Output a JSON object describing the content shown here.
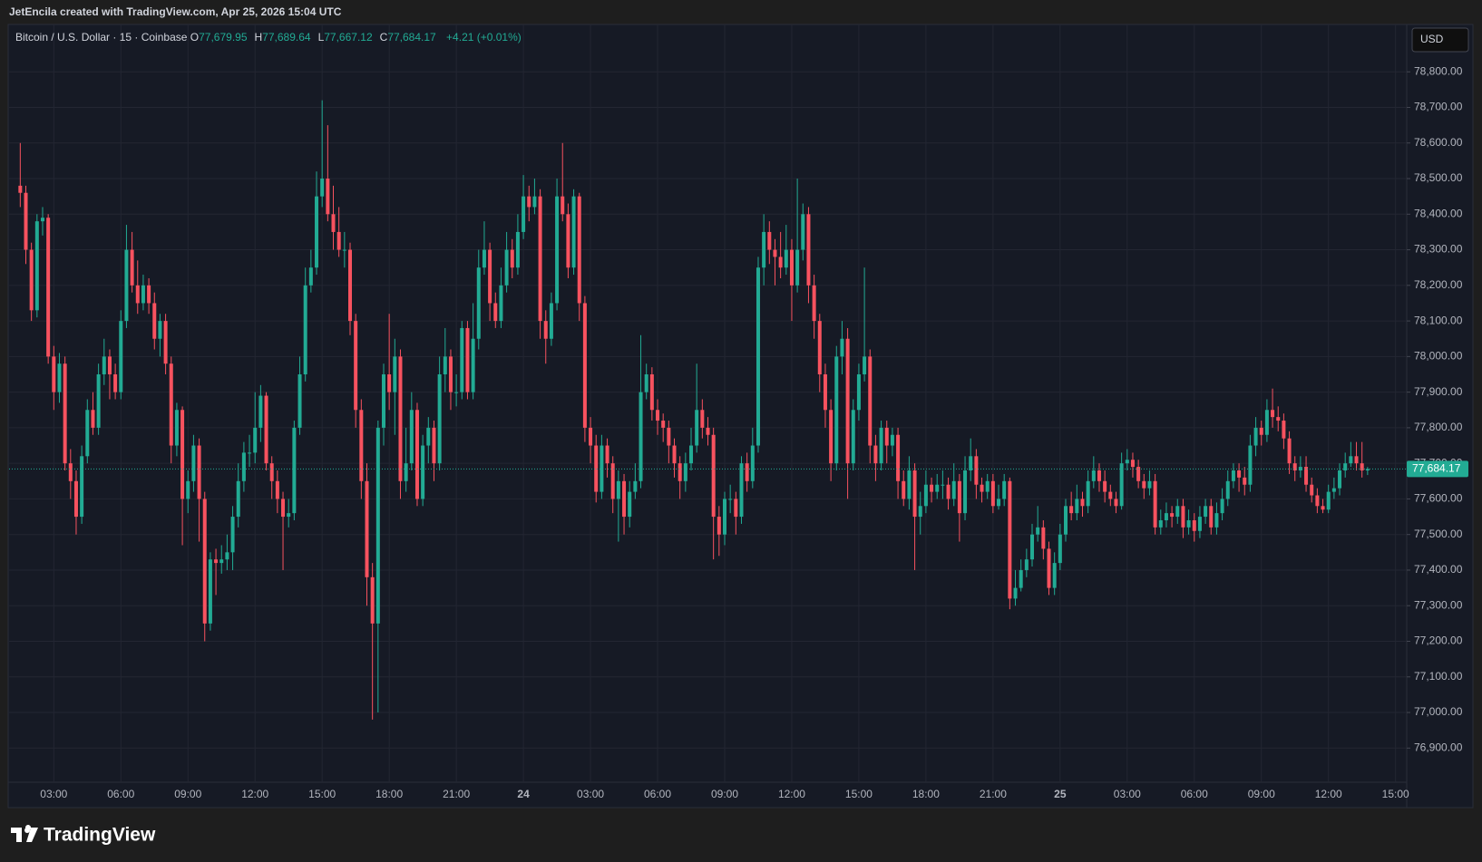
{
  "header": {
    "credit": "JetEncila created with TradingView.com, Apr 25, 2026 15:04 UTC"
  },
  "chart_data": {
    "type": "candlestick",
    "title": "Bitcoin / U.S. Dollar · 15 · Coinbase",
    "legend_values": [
      {
        "name": "O",
        "label": "77,679.95"
      },
      {
        "name": "H",
        "label": "77,689.64"
      },
      {
        "name": "L",
        "label": "77,667.12"
      },
      {
        "name": "C",
        "label": "77,684.17"
      }
    ],
    "change": "+4.21 (+0.01%)",
    "currency": "USD",
    "last_price_label": "77,684.17",
    "up_color": "#22ab94",
    "down_color": "#f7525f",
    "grid": true,
    "open": [
      78480,
      78460,
      78300,
      78130,
      78380,
      78390,
      78000,
      77900,
      77980,
      77700,
      77650,
      77550,
      77720,
      77850,
      77800,
      77950,
      78000,
      77950,
      77900,
      78100,
      78300,
      78200,
      78150,
      78200,
      78150,
      78050,
      78100,
      77980,
      77750,
      77850,
      77600,
      77650,
      77750,
      77600,
      77250,
      77430,
      77420,
      77430,
      77450,
      77550,
      77650,
      77730,
      77730,
      77800,
      77890,
      77700,
      77650,
      77600,
      77550,
      77560,
      77800,
      77950,
      78200,
      78250,
      78450,
      78500,
      78400,
      78350,
      78300,
      78300,
      78100,
      77850,
      77650,
      77380,
      77250,
      77800,
      77950,
      77900,
      78000,
      77650,
      77700,
      77850,
      77600,
      77750,
      77800,
      77700,
      77950,
      78000,
      77900,
      77900,
      78080,
      77900,
      78050,
      78250,
      78300,
      78150,
      78100,
      78200,
      78300,
      78250,
      78350,
      78450,
      78420,
      78450,
      78100,
      78050,
      78150,
      78450,
      78400,
      78250,
      78450,
      78150,
      77800,
      77750,
      77620,
      77750,
      77700,
      77600,
      77650,
      77550,
      77620,
      77650,
      77900,
      77950,
      77850,
      77820,
      77800,
      77750,
      77700,
      77650,
      77700,
      77750,
      77850,
      77800,
      77780,
      77550,
      77500,
      77600,
      77600,
      77550,
      77700,
      77650,
      77750,
      78250,
      78350,
      78300,
      78280,
      78250,
      78300,
      78200,
      78300,
      78400,
      78200,
      78100,
      77950,
      77850,
      77700,
      78000,
      78050,
      77700,
      77850,
      77950,
      78000,
      77750,
      77700,
      77800,
      77750,
      77780,
      77650,
      77600,
      77680,
      77550,
      77580,
      77640,
      77620,
      77640,
      77640,
      77600,
      77650,
      77560,
      77680,
      77720,
      77640,
      77620,
      77650,
      77580,
      77600,
      77650,
      77320,
      77350,
      77400,
      77430,
      77500,
      77520,
      77460,
      77350,
      77420,
      77500,
      77580,
      77560,
      77600,
      77580,
      77650,
      77680,
      77650,
      77620,
      77600,
      77580,
      77700,
      77710,
      77690,
      77650,
      77630,
      77650,
      77520,
      77540,
      77560,
      77550,
      77580,
      77520,
      77540,
      77510,
      77550,
      77580,
      77520,
      77560,
      77600,
      77650,
      77680,
      77660,
      77640,
      77750,
      77800,
      77780,
      77850,
      77830,
      77820,
      77770,
      77700,
      77680,
      77690,
      77640,
      77610,
      77580,
      77570,
      77620,
      77630,
      77680,
      77700,
      77720,
      77700,
      77679.95
    ],
    "high": [
      78600,
      78480,
      78320,
      78400,
      78420,
      78400,
      78030,
      78010,
      78000,
      77740,
      77680,
      77750,
      77880,
      77900,
      77980,
      78050,
      78020,
      77980,
      78130,
      78370,
      78350,
      78270,
      78230,
      78220,
      78180,
      78120,
      78120,
      78000,
      77870,
      77860,
      77680,
      77780,
      77770,
      77620,
      77450,
      77460,
      77470,
      77500,
      77580,
      77700,
      77760,
      77780,
      77900,
      77920,
      77900,
      77720,
      77680,
      77620,
      77600,
      77820,
      78000,
      78250,
      78300,
      78520,
      78720,
      78650,
      78480,
      78420,
      78350,
      78320,
      78120,
      77880,
      77700,
      77420,
      77820,
      77980,
      78120,
      78050,
      78020,
      77800,
      77900,
      77870,
      77780,
      77830,
      77820,
      78000,
      78080,
      78020,
      77950,
      78100,
      78100,
      78150,
      78300,
      78380,
      78320,
      78180,
      78250,
      78350,
      78330,
      78400,
      78510,
      78480,
      78500,
      78470,
      78130,
      78180,
      78500,
      78600,
      78430,
      78470,
      78460,
      78170,
      77830,
      77780,
      77780,
      77770,
      77720,
      77680,
      77670,
      77650,
      77700,
      78060,
      77980,
      77970,
      77880,
      77840,
      77820,
      77770,
      77720,
      77730,
      77800,
      77980,
      77880,
      77830,
      77800,
      77580,
      77620,
      77640,
      77620,
      77720,
      77730,
      77800,
      78280,
      78400,
      78380,
      78330,
      78350,
      78370,
      78330,
      78500,
      78430,
      78420,
      78230,
      78120,
      77980,
      77880,
      78030,
      78100,
      78080,
      77880,
      77980,
      78250,
      78020,
      77780,
      77820,
      77820,
      77800,
      77800,
      77680,
      77720,
      77700,
      77620,
      77680,
      77660,
      77670,
      77680,
      77660,
      77700,
      77670,
      77720,
      77770,
      77740,
      77660,
      77670,
      77670,
      77640,
      77670,
      77660,
      77400,
      77430,
      77460,
      77530,
      77580,
      77540,
      77480,
      77450,
      77530,
      77600,
      77620,
      77640,
      77620,
      77680,
      77720,
      77700,
      77680,
      77640,
      77620,
      77730,
      77740,
      77730,
      77710,
      77670,
      77680,
      77670,
      77570,
      77590,
      77580,
      77600,
      77600,
      77570,
      77560,
      77580,
      77600,
      77600,
      77590,
      77630,
      77680,
      77700,
      77700,
      77690,
      77780,
      77830,
      77820,
      77880,
      77910,
      77860,
      77840,
      77790,
      77720,
      77720,
      77720,
      77660,
      77630,
      77600,
      77640,
      77660,
      77700,
      77730,
      77760,
      77760,
      77760,
      77689.64
    ],
    "low": [
      78420,
      78260,
      78100,
      78110,
      78340,
      77980,
      77850,
      77870,
      77680,
      77600,
      77500,
      77530,
      77700,
      77780,
      77780,
      77920,
      77880,
      77880,
      77880,
      78080,
      78180,
      78120,
      78130,
      78120,
      78020,
      78000,
      77950,
      77700,
      77720,
      77470,
      77560,
      77620,
      77480,
      77200,
      77230,
      77330,
      77390,
      77400,
      77400,
      77520,
      77620,
      77690,
      77700,
      77760,
      77680,
      77600,
      77560,
      77400,
      77520,
      77540,
      77780,
      77930,
      78180,
      78230,
      78420,
      78380,
      78300,
      78280,
      78250,
      78060,
      77800,
      77600,
      77300,
      76980,
      77000,
      77750,
      77850,
      77780,
      77600,
      77620,
      77680,
      77580,
      77580,
      77700,
      77650,
      77680,
      77900,
      77850,
      77860,
      77880,
      77880,
      77880,
      78020,
      78230,
      78100,
      78080,
      78080,
      78180,
      78220,
      78230,
      78330,
      78380,
      78400,
      78050,
      77980,
      78030,
      78130,
      78380,
      78220,
      78230,
      78100,
      77760,
      77700,
      77590,
      77600,
      77660,
      77560,
      77480,
      77500,
      77520,
      77600,
      77630,
      77880,
      77820,
      77780,
      77760,
      77700,
      77660,
      77600,
      77620,
      77680,
      77730,
      77770,
      77750,
      77430,
      77440,
      77470,
      77560,
      77500,
      77530,
      77620,
      77630,
      77730,
      78200,
      78260,
      78200,
      78220,
      78230,
      78100,
      78180,
      78270,
      78150,
      78050,
      77900,
      77800,
      77650,
      77680,
      77950,
      77600,
      77680,
      77820,
      77930,
      77700,
      77650,
      77680,
      77700,
      77720,
      77600,
      77580,
      77570,
      77400,
      77500,
      77560,
      77590,
      77600,
      77600,
      77570,
      77580,
      77480,
      77540,
      77650,
      77600,
      77590,
      77600,
      77560,
      77570,
      77580,
      77290,
      77300,
      77340,
      77380,
      77410,
      77480,
      77430,
      77330,
      77330,
      77400,
      77480,
      77540,
      77540,
      77550,
      77560,
      77630,
      77620,
      77590,
      77580,
      77560,
      77570,
      77680,
      77660,
      77630,
      77600,
      77610,
      77500,
      77500,
      77520,
      77520,
      77530,
      77490,
      77500,
      77480,
      77490,
      77530,
      77500,
      77500,
      77540,
      77580,
      77630,
      77620,
      77610,
      77620,
      77720,
      77750,
      77760,
      77800,
      77790,
      77740,
      77670,
      77650,
      77660,
      77620,
      77590,
      77560,
      77560,
      77560,
      77600,
      77610,
      77660,
      77690,
      77680,
      77660,
      77667.12
    ],
    "close": [
      78460,
      78300,
      78130,
      78380,
      78390,
      78000,
      77900,
      77980,
      77700,
      77650,
      77550,
      77720,
      77850,
      77800,
      77950,
      78000,
      77950,
      77900,
      78100,
      78300,
      78200,
      78150,
      78200,
      78150,
      78050,
      78100,
      77980,
      77750,
      77850,
      77600,
      77650,
      77750,
      77600,
      77250,
      77430,
      77420,
      77430,
      77450,
      77550,
      77650,
      77730,
      77730,
      77800,
      77890,
      77700,
      77650,
      77600,
      77550,
      77560,
      77800,
      77950,
      78200,
      78250,
      78450,
      78500,
      78400,
      78350,
      78300,
      78300,
      78100,
      77850,
      77650,
      77380,
      77250,
      77800,
      77950,
      77900,
      78000,
      77650,
      77700,
      77850,
      77600,
      77750,
      77800,
      77700,
      77950,
      78000,
      77900,
      77900,
      78080,
      77900,
      78050,
      78250,
      78300,
      78150,
      78100,
      78200,
      78300,
      78250,
      78350,
      78450,
      78420,
      78450,
      78100,
      78050,
      78150,
      78450,
      78400,
      78250,
      78450,
      78150,
      77800,
      77750,
      77620,
      77750,
      77700,
      77600,
      77650,
      77550,
      77620,
      77650,
      77900,
      77950,
      77850,
      77820,
      77800,
      77750,
      77700,
      77650,
      77700,
      77750,
      77850,
      77800,
      77780,
      77550,
      77500,
      77600,
      77600,
      77550,
      77700,
      77650,
      77750,
      78250,
      78350,
      78300,
      78280,
      78250,
      78300,
      78200,
      78300,
      78400,
      78200,
      78100,
      77950,
      77850,
      77700,
      78000,
      78050,
      77700,
      77850,
      77950,
      78000,
      77750,
      77700,
      77800,
      77750,
      77780,
      77650,
      77600,
      77680,
      77550,
      77580,
      77640,
      77620,
      77640,
      77640,
      77600,
      77650,
      77560,
      77680,
      77720,
      77640,
      77620,
      77650,
      77580,
      77600,
      77650,
      77320,
      77350,
      77400,
      77430,
      77500,
      77520,
      77460,
      77350,
      77420,
      77500,
      77580,
      77560,
      77600,
      77580,
      77650,
      77680,
      77650,
      77620,
      77600,
      77580,
      77700,
      77710,
      77690,
      77650,
      77630,
      77650,
      77520,
      77540,
      77560,
      77550,
      77580,
      77520,
      77540,
      77510,
      77550,
      77580,
      77520,
      77560,
      77600,
      77650,
      77680,
      77660,
      77640,
      77750,
      77800,
      77780,
      77850,
      77830,
      77820,
      77770,
      77700,
      77680,
      77690,
      77640,
      77610,
      77580,
      77570,
      77620,
      77630,
      77680,
      77700,
      77720,
      77700,
      77679.95,
      77684.17
    ],
    "xlim": [
      -2,
      248
    ],
    "xticks": [
      {
        "value": 6,
        "label": "03:00"
      },
      {
        "value": 18,
        "label": "06:00"
      },
      {
        "value": 30,
        "label": "09:00"
      },
      {
        "value": 42,
        "label": "12:00"
      },
      {
        "value": 54,
        "label": "15:00"
      },
      {
        "value": 66,
        "label": "18:00"
      },
      {
        "value": 78,
        "label": "21:00"
      },
      {
        "value": 90,
        "label": "24"
      },
      {
        "value": 102,
        "label": "03:00"
      },
      {
        "value": 114,
        "label": "06:00"
      },
      {
        "value": 126,
        "label": "09:00"
      },
      {
        "value": 138,
        "label": "12:00"
      },
      {
        "value": 150,
        "label": "15:00"
      },
      {
        "value": 162,
        "label": "18:00"
      },
      {
        "value": 174,
        "label": "21:00"
      },
      {
        "value": 186,
        "label": "25"
      },
      {
        "value": 198,
        "label": "03:00"
      },
      {
        "value": 210,
        "label": "06:00"
      },
      {
        "value": 222,
        "label": "09:00"
      },
      {
        "value": 234,
        "label": "12:00"
      },
      {
        "value": 246,
        "label": "15:00"
      }
    ],
    "ylim": [
      76804,
      78933
    ],
    "yticks": [
      {
        "value": 76900,
        "label": "76,900.00"
      },
      {
        "value": 77000,
        "label": "77,000.00"
      },
      {
        "value": 77100,
        "label": "77,100.00"
      },
      {
        "value": 77200,
        "label": "77,200.00"
      },
      {
        "value": 77300,
        "label": "77,300.00"
      },
      {
        "value": 77400,
        "label": "77,400.00"
      },
      {
        "value": 77500,
        "label": "77,500.00"
      },
      {
        "value": 77600,
        "label": "77,600.00"
      },
      {
        "value": 77700,
        "label": "77,700.00"
      },
      {
        "value": 77800,
        "label": "77,800.00"
      },
      {
        "value": 77900,
        "label": "77,900.00"
      },
      {
        "value": 78000,
        "label": "78,000.00"
      },
      {
        "value": 78100,
        "label": "78,100.00"
      },
      {
        "value": 78200,
        "label": "78,200.00"
      },
      {
        "value": 78300,
        "label": "78,300.00"
      },
      {
        "value": 78400,
        "label": "78,400.00"
      },
      {
        "value": 78500,
        "label": "78,500.00"
      },
      {
        "value": 78600,
        "label": "78,600.00"
      },
      {
        "value": 78700,
        "label": "78,700.00"
      },
      {
        "value": 78800,
        "label": "78,800.00"
      }
    ]
  },
  "footer": {
    "logo": "TradingView"
  }
}
